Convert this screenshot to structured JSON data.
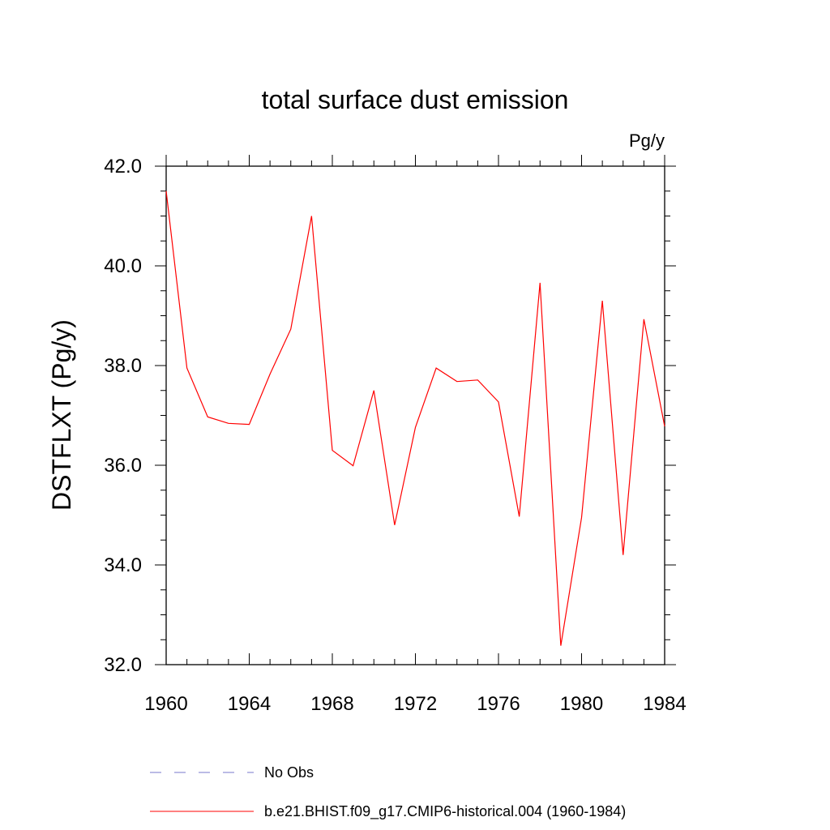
{
  "chart_data": {
    "type": "line",
    "title": "total surface dust emission",
    "units": "Pg/y",
    "xlabel": "",
    "ylabel": "DSTFLXT  (Pg/y)",
    "xlim": [
      1960,
      1984
    ],
    "ylim": [
      32.0,
      42.0
    ],
    "x_ticks": [
      1960,
      1964,
      1968,
      1972,
      1976,
      1980,
      1984
    ],
    "x_tick_labels": [
      "1960",
      "1964",
      "1968",
      "1972",
      "1976",
      "1980",
      "1984"
    ],
    "y_ticks": [
      32,
      34,
      36,
      38,
      40,
      42
    ],
    "y_tick_labels": [
      "32.0",
      "34.0",
      "36.0",
      "38.0",
      "40.0",
      "42.0"
    ],
    "grid": false,
    "legend_position": "bottom",
    "series": [
      {
        "name": "No Obs",
        "style": "dashed",
        "color": "#7777cc",
        "x": [],
        "y": []
      },
      {
        "name": "b.e21.BHIST.f09_g17.CMIP6-historical.004 (1960-1984)",
        "style": "solid",
        "color": "#ff0000",
        "x": [
          1960,
          1961,
          1962,
          1963,
          1964,
          1965,
          1966,
          1967,
          1968,
          1969,
          1970,
          1971,
          1972,
          1973,
          1974,
          1975,
          1976,
          1977,
          1978,
          1979,
          1980,
          1981,
          1982,
          1983,
          1984
        ],
        "y": [
          41.5,
          37.95,
          36.97,
          36.84,
          36.82,
          37.83,
          38.73,
          41.0,
          36.3,
          35.99,
          37.5,
          34.8,
          36.76,
          37.95,
          37.68,
          37.71,
          37.27,
          34.97,
          39.66,
          32.38,
          34.95,
          39.3,
          34.2,
          38.93,
          36.78
        ]
      }
    ]
  }
}
